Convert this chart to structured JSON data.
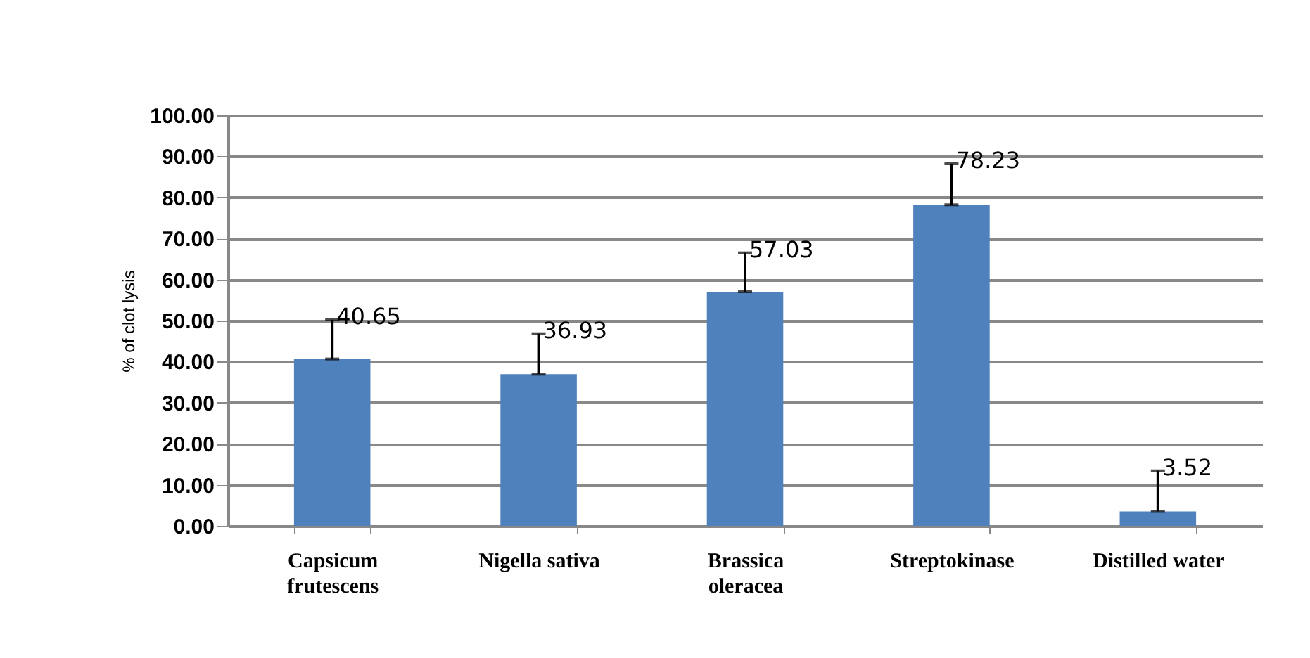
{
  "chart_data": {
    "type": "bar",
    "ylabel": "% of clot lysis",
    "categories": [
      "Capsicum frutescens",
      "Nigella sativa",
      "Brassica oleracea",
      "Streptokinase",
      "Distilled water"
    ],
    "values": [
      40.65,
      36.93,
      57.03,
      78.23,
      3.52
    ],
    "errors": [
      [
        40.65,
        50.2
      ],
      [
        36.93,
        46.8
      ],
      [
        57.03,
        66.5
      ],
      [
        78.23,
        88.2
      ],
      [
        3.52,
        13.4
      ]
    ],
    "color": "#4f81bd",
    "data_labels": true,
    "ylim": [
      0,
      100
    ],
    "yticks": [
      {
        "value": 0,
        "label": "0.00"
      },
      {
        "value": 10,
        "label": "10.00"
      },
      {
        "value": 20,
        "label": "20.00"
      },
      {
        "value": 30,
        "label": "30.00"
      },
      {
        "value": 40,
        "label": "40.00"
      },
      {
        "value": 50,
        "label": "50.00"
      },
      {
        "value": 60,
        "label": "60.00"
      },
      {
        "value": 70,
        "label": "70.00"
      },
      {
        "value": 80,
        "label": "80.00"
      },
      {
        "value": 90,
        "label": "90.00"
      },
      {
        "value": 100,
        "label": "100.00"
      }
    ],
    "grid": "y"
  }
}
